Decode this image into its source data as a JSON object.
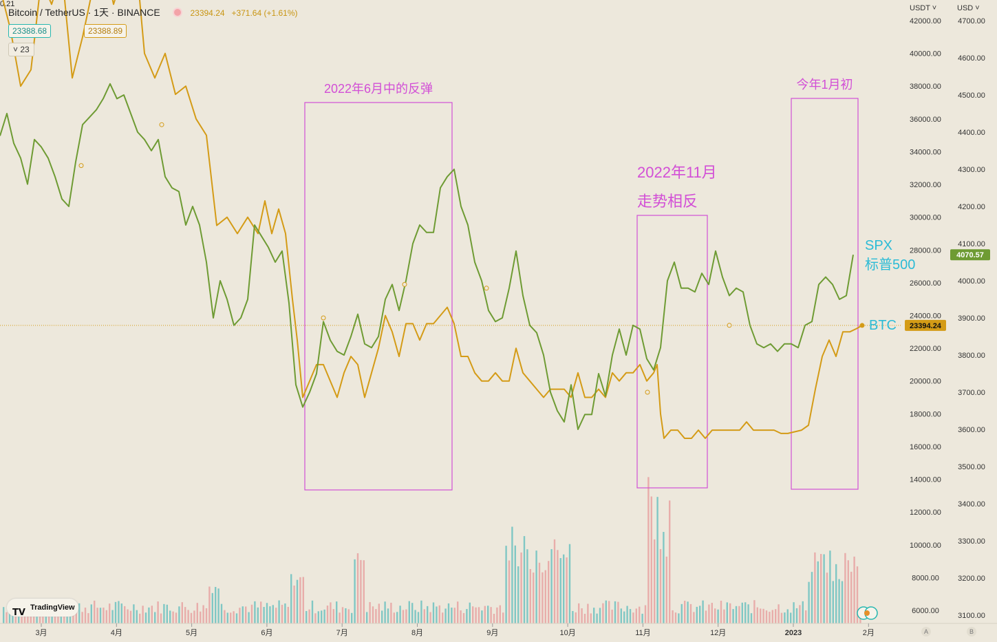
{
  "header": {
    "symbol": "Bitcoin / TetherUS · 1天 · BINANCE",
    "last_price": "23394.24",
    "change": "+371.64 (+1.61%)",
    "bid": "23388.68",
    "spread": "0.21",
    "ask": "23388.89",
    "indicator_count": "23"
  },
  "axes": {
    "left_currency": "USDT ˅",
    "right_currency": "USD ˅",
    "a_button": "A",
    "b_button": "B"
  },
  "logo": {
    "text": "TradingView"
  },
  "colors": {
    "btc": "#d49b16",
    "spx": "#6e9b33",
    "annotation": "#d24fd6",
    "label_cyan": "#2bbbd6",
    "vol_up": "#5bbcbc",
    "vol_down": "#e69a9a"
  },
  "chart_data": {
    "type": "line",
    "x_months": [
      "3月",
      "4月",
      "5月",
      "6月",
      "7月",
      "8月",
      "9月",
      "10月",
      "11月",
      "12月",
      "2023",
      "2月"
    ],
    "y_left": {
      "label": "USDT",
      "range": [
        5000,
        42000
      ],
      "ticks": [
        "6000.00",
        "8000.00",
        "10000.00",
        "12000.00",
        "14000.00",
        "16000.00",
        "18000.00",
        "20000.00",
        "22000.00",
        "24000.00",
        "26000.00",
        "28000.00",
        "30000.00",
        "32000.00",
        "34000.00",
        "36000.00",
        "38000.00",
        "40000.00",
        "42000.00"
      ]
    },
    "y_right": {
      "label": "USD",
      "range": [
        3080,
        4700
      ],
      "ticks": [
        "3100.00",
        "3200.00",
        "3300.00",
        "3400.00",
        "3500.00",
        "3600.00",
        "3700.00",
        "3800.00",
        "3900.00",
        "4000.00",
        "4100.00",
        "4200.00",
        "4300.00",
        "4400.00",
        "4500.00",
        "4600.00",
        "4700.00"
      ]
    },
    "series": [
      {
        "name": "BTC",
        "axis": "left",
        "last_value": "23394.24",
        "points": [
          [
            0,
            44000
          ],
          [
            15,
            41500
          ],
          [
            30,
            38000
          ],
          [
            45,
            39000
          ],
          [
            60,
            44500
          ],
          [
            75,
            43000
          ],
          [
            90,
            45000
          ],
          [
            105,
            38500
          ],
          [
            120,
            41000
          ],
          [
            135,
            44000
          ],
          [
            150,
            46000
          ],
          [
            165,
            43000
          ],
          [
            180,
            45000
          ],
          [
            195,
            47000
          ],
          [
            210,
            40000
          ],
          [
            225,
            38500
          ],
          [
            240,
            40000
          ],
          [
            255,
            37500
          ],
          [
            270,
            38000
          ],
          [
            285,
            36000
          ],
          [
            300,
            35000
          ],
          [
            315,
            29500
          ],
          [
            330,
            30000
          ],
          [
            345,
            29000
          ],
          [
            360,
            30000
          ],
          [
            375,
            29000
          ],
          [
            385,
            31000
          ],
          [
            395,
            29000
          ],
          [
            405,
            30500
          ],
          [
            415,
            29000
          ],
          [
            425,
            25000
          ],
          [
            432,
            22500
          ],
          [
            440,
            19000
          ],
          [
            450,
            20000
          ],
          [
            460,
            21000
          ],
          [
            470,
            21000
          ],
          [
            480,
            20000
          ],
          [
            490,
            19000
          ],
          [
            500,
            20500
          ],
          [
            510,
            21500
          ],
          [
            520,
            21000
          ],
          [
            530,
            19000
          ],
          [
            540,
            20500
          ],
          [
            550,
            22000
          ],
          [
            560,
            24000
          ],
          [
            570,
            23000
          ],
          [
            580,
            21500
          ],
          [
            590,
            23500
          ],
          [
            600,
            23500
          ],
          [
            610,
            22500
          ],
          [
            620,
            23500
          ],
          [
            630,
            23500
          ],
          [
            640,
            24000
          ],
          [
            650,
            24500
          ],
          [
            660,
            23500
          ],
          [
            670,
            21500
          ],
          [
            680,
            21500
          ],
          [
            690,
            20500
          ],
          [
            700,
            20000
          ],
          [
            710,
            20000
          ],
          [
            720,
            20500
          ],
          [
            730,
            20000
          ],
          [
            740,
            20000
          ],
          [
            750,
            22000
          ],
          [
            760,
            20500
          ],
          [
            770,
            20000
          ],
          [
            780,
            19500
          ],
          [
            790,
            19000
          ],
          [
            800,
            19500
          ],
          [
            810,
            19500
          ],
          [
            820,
            19500
          ],
          [
            830,
            19000
          ],
          [
            840,
            20500
          ],
          [
            850,
            19000
          ],
          [
            860,
            19000
          ],
          [
            870,
            19500
          ],
          [
            880,
            19000
          ],
          [
            890,
            20500
          ],
          [
            900,
            20000
          ],
          [
            910,
            20500
          ],
          [
            920,
            20500
          ],
          [
            930,
            21000
          ],
          [
            940,
            20000
          ],
          [
            950,
            20500
          ],
          [
            955,
            21000
          ],
          [
            960,
            18000
          ],
          [
            965,
            16500
          ],
          [
            975,
            17000
          ],
          [
            985,
            17000
          ],
          [
            995,
            16500
          ],
          [
            1005,
            16500
          ],
          [
            1015,
            17000
          ],
          [
            1025,
            16500
          ],
          [
            1035,
            17000
          ],
          [
            1045,
            17000
          ],
          [
            1055,
            17000
          ],
          [
            1065,
            17000
          ],
          [
            1075,
            17000
          ],
          [
            1085,
            17500
          ],
          [
            1095,
            17000
          ],
          [
            1105,
            17000
          ],
          [
            1115,
            17000
          ],
          [
            1125,
            17000
          ],
          [
            1135,
            16800
          ],
          [
            1145,
            16800
          ],
          [
            1155,
            16900
          ],
          [
            1165,
            17000
          ],
          [
            1175,
            17300
          ],
          [
            1185,
            19500
          ],
          [
            1195,
            21500
          ],
          [
            1205,
            22500
          ],
          [
            1215,
            21500
          ],
          [
            1225,
            23000
          ],
          [
            1235,
            23000
          ],
          [
            1245,
            23200
          ],
          [
            1253,
            23394
          ]
        ]
      },
      {
        "name": "SPX 标普500",
        "axis": "right",
        "last_value": "4070.57",
        "points": [
          [
            0,
            4390
          ],
          [
            10,
            4450
          ],
          [
            20,
            4370
          ],
          [
            30,
            4330
          ],
          [
            40,
            4260
          ],
          [
            50,
            4380
          ],
          [
            60,
            4360
          ],
          [
            70,
            4330
          ],
          [
            80,
            4280
          ],
          [
            90,
            4220
          ],
          [
            100,
            4200
          ],
          [
            110,
            4320
          ],
          [
            120,
            4420
          ],
          [
            130,
            4440
          ],
          [
            140,
            4460
          ],
          [
            150,
            4490
          ],
          [
            160,
            4530
          ],
          [
            170,
            4490
          ],
          [
            180,
            4500
          ],
          [
            190,
            4450
          ],
          [
            200,
            4400
          ],
          [
            210,
            4380
          ],
          [
            220,
            4350
          ],
          [
            230,
            4380
          ],
          [
            240,
            4280
          ],
          [
            250,
            4250
          ],
          [
            260,
            4240
          ],
          [
            270,
            4150
          ],
          [
            280,
            4200
          ],
          [
            290,
            4150
          ],
          [
            300,
            4050
          ],
          [
            310,
            3900
          ],
          [
            320,
            4000
          ],
          [
            330,
            3950
          ],
          [
            340,
            3880
          ],
          [
            350,
            3900
          ],
          [
            360,
            3950
          ],
          [
            370,
            4150
          ],
          [
            380,
            4120
          ],
          [
            390,
            4090
          ],
          [
            400,
            4050
          ],
          [
            410,
            4080
          ],
          [
            420,
            3940
          ],
          [
            430,
            3720
          ],
          [
            440,
            3660
          ],
          [
            450,
            3700
          ],
          [
            460,
            3750
          ],
          [
            470,
            3890
          ],
          [
            480,
            3840
          ],
          [
            490,
            3810
          ],
          [
            500,
            3800
          ],
          [
            510,
            3850
          ],
          [
            520,
            3910
          ],
          [
            530,
            3830
          ],
          [
            540,
            3820
          ],
          [
            550,
            3850
          ],
          [
            560,
            3950
          ],
          [
            570,
            3990
          ],
          [
            580,
            3920
          ],
          [
            590,
            4000
          ],
          [
            600,
            4100
          ],
          [
            610,
            4150
          ],
          [
            620,
            4130
          ],
          [
            630,
            4130
          ],
          [
            640,
            4250
          ],
          [
            650,
            4280
          ],
          [
            660,
            4300
          ],
          [
            670,
            4200
          ],
          [
            680,
            4150
          ],
          [
            690,
            4050
          ],
          [
            700,
            4000
          ],
          [
            710,
            3920
          ],
          [
            720,
            3890
          ],
          [
            730,
            3900
          ],
          [
            740,
            3980
          ],
          [
            750,
            4080
          ],
          [
            760,
            3960
          ],
          [
            770,
            3880
          ],
          [
            780,
            3860
          ],
          [
            790,
            3800
          ],
          [
            800,
            3700
          ],
          [
            810,
            3650
          ],
          [
            820,
            3620
          ],
          [
            830,
            3720
          ],
          [
            840,
            3600
          ],
          [
            850,
            3640
          ],
          [
            860,
            3640
          ],
          [
            870,
            3750
          ],
          [
            880,
            3690
          ],
          [
            890,
            3800
          ],
          [
            900,
            3870
          ],
          [
            910,
            3800
          ],
          [
            920,
            3880
          ],
          [
            930,
            3870
          ],
          [
            940,
            3790
          ],
          [
            950,
            3760
          ],
          [
            960,
            3820
          ],
          [
            970,
            4000
          ],
          [
            980,
            4050
          ],
          [
            990,
            3980
          ],
          [
            1000,
            3980
          ],
          [
            1010,
            3970
          ],
          [
            1020,
            4020
          ],
          [
            1030,
            3990
          ],
          [
            1040,
            4080
          ],
          [
            1050,
            4010
          ],
          [
            1060,
            3960
          ],
          [
            1070,
            3980
          ],
          [
            1080,
            3970
          ],
          [
            1090,
            3880
          ],
          [
            1100,
            3830
          ],
          [
            1110,
            3820
          ],
          [
            1120,
            3830
          ],
          [
            1130,
            3810
          ],
          [
            1140,
            3830
          ],
          [
            1150,
            3830
          ],
          [
            1160,
            3820
          ],
          [
            1170,
            3880
          ],
          [
            1180,
            3890
          ],
          [
            1190,
            3990
          ],
          [
            1200,
            4010
          ],
          [
            1210,
            3990
          ],
          [
            1220,
            3950
          ],
          [
            1230,
            3960
          ],
          [
            1240,
            4070
          ]
        ]
      }
    ],
    "annotations": [
      {
        "text": "2022年6月中的反弹",
        "range_x": [
          443,
          657
        ]
      },
      {
        "text": "2022年11月",
        "text2": "走势相反",
        "range_x": [
          926,
          1028
        ]
      },
      {
        "text": "今年1月初",
        "range_x": [
          1150,
          1247
        ]
      }
    ],
    "labels": {
      "spx_line1": "SPX",
      "spx_line2": "标普500",
      "btc": "BTC"
    },
    "volume": {
      "shown": true
    }
  }
}
